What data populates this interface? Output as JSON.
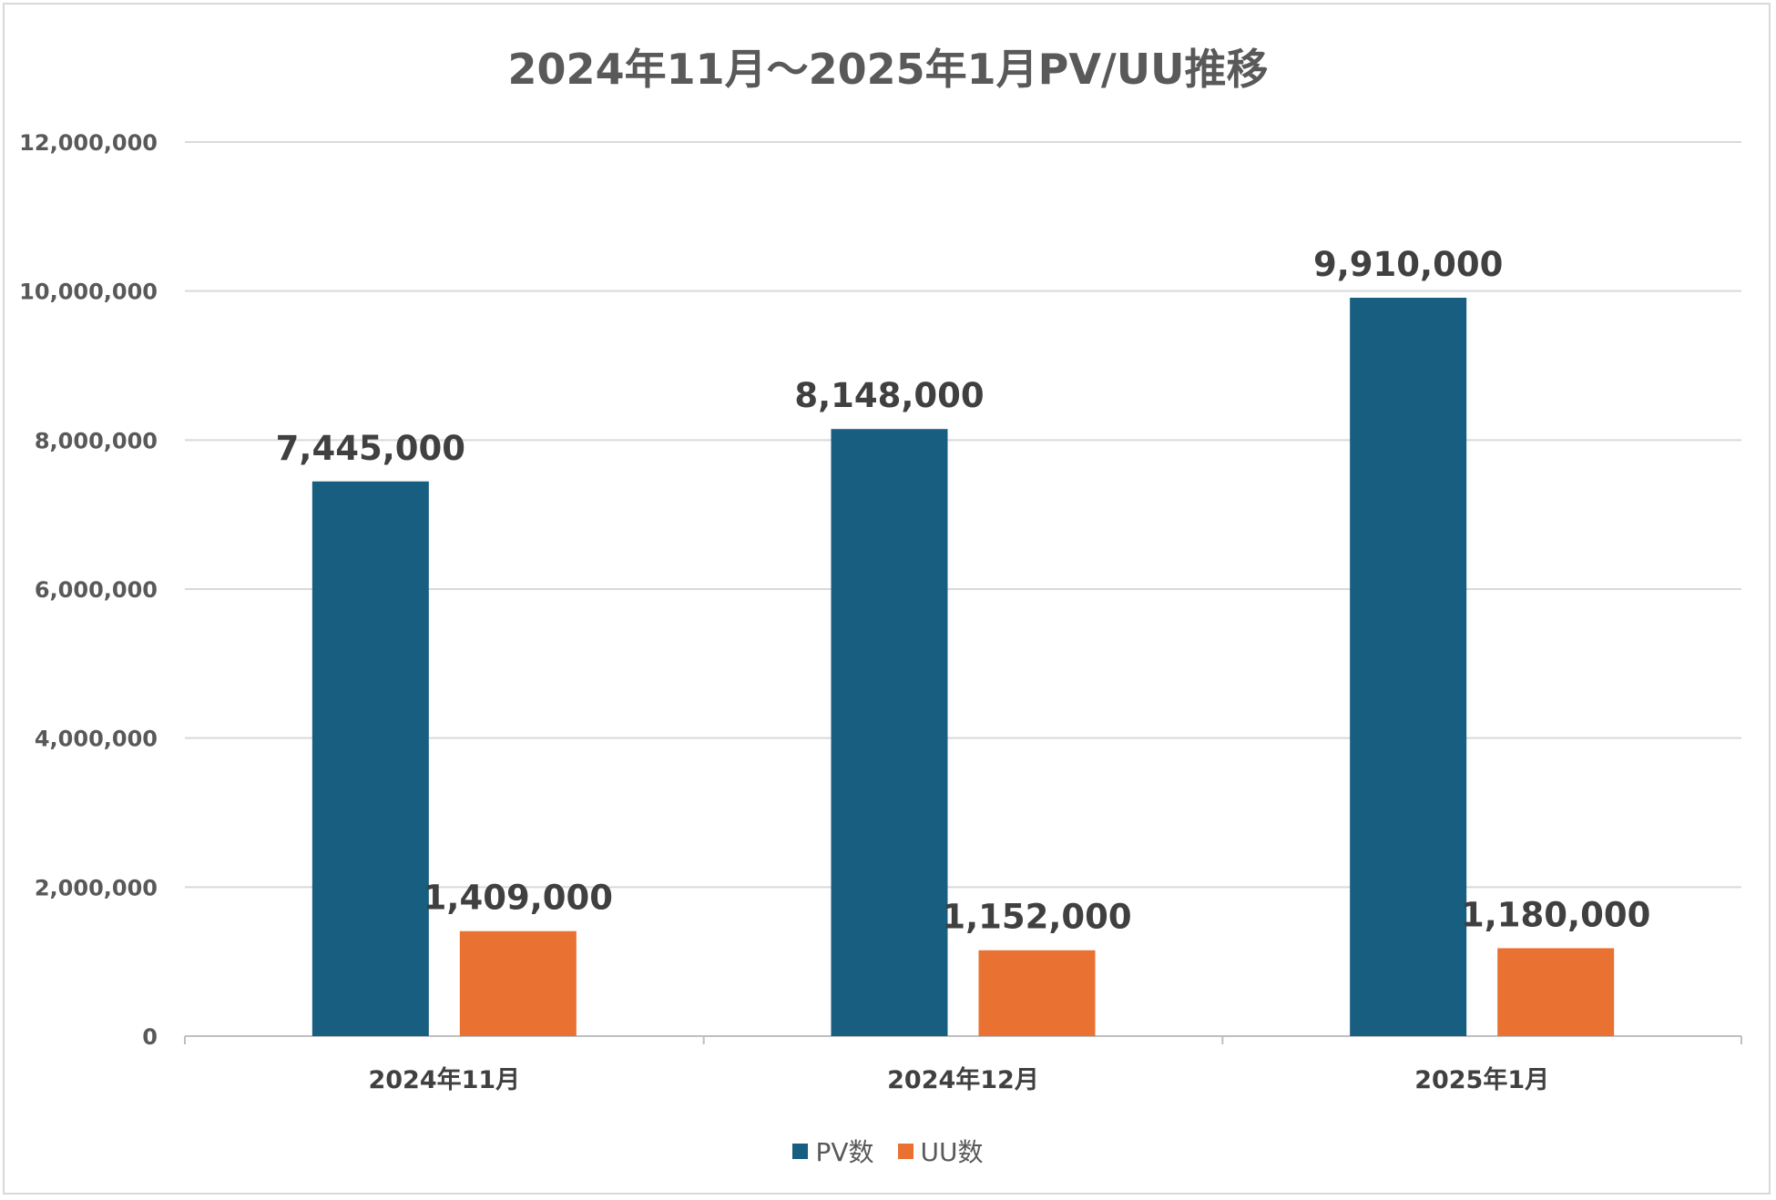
{
  "chart_data": {
    "type": "bar",
    "title": "2024年11月～2025年1月PV/UU推移",
    "categories": [
      "2024年11月",
      "2024年12月",
      "2025年1月"
    ],
    "series": [
      {
        "name": "PV数",
        "color": "#175e81",
        "values": [
          7445000,
          8148000,
          9910000
        ],
        "labels": [
          "7,445,000",
          "8,148,000",
          "9,910,000"
        ]
      },
      {
        "name": "UU数",
        "color": "#e97132",
        "values": [
          1409000,
          1152000,
          1180000
        ],
        "labels": [
          "1,409,000",
          "1,152,000",
          "1,180,000"
        ]
      }
    ],
    "yticks": [
      0,
      2000000,
      4000000,
      6000000,
      8000000,
      10000000,
      12000000
    ],
    "ytick_labels": [
      "0",
      "2,000,000",
      "4,000,000",
      "6,000,000",
      "8,000,000",
      "10,000,000",
      "12,000,000"
    ],
    "ylim": [
      0,
      12000000
    ],
    "grid": true,
    "legend_position": "bottom"
  }
}
